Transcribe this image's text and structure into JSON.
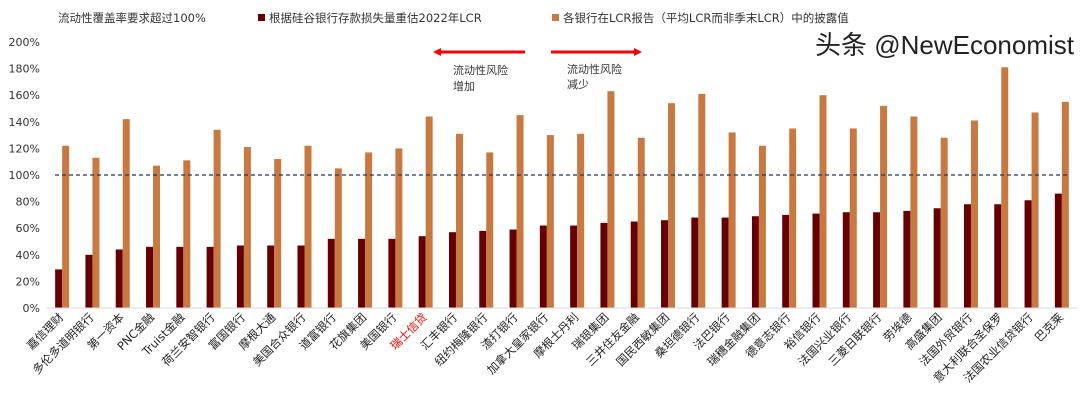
{
  "chart_data": {
    "type": "bar",
    "title": "",
    "xlabel": "",
    "ylabel": "",
    "ylim": [
      0,
      200
    ],
    "y_tick_format": "percent",
    "y_ticks": [
      "0%",
      "20%",
      "40%",
      "60%",
      "80%",
      "100%",
      "120%",
      "140%",
      "160%",
      "180%",
      "200%"
    ],
    "grid": false,
    "legend_position": "top",
    "reference_line": {
      "value": 100,
      "style": "dashed",
      "color": "#1f3864"
    },
    "annotation_top": "流动性覆盖率要求超过100%",
    "arrows": [
      {
        "direction": "left",
        "label_line1": "流动性风险",
        "label_line2": "增加",
        "color": "#ff0000"
      },
      {
        "direction": "right",
        "label_line1": "流动性风险",
        "label_line2": "减少",
        "color": "#ff0000"
      }
    ],
    "highlight_category": "瑞士信贷",
    "highlight_color": "#ff0000",
    "categories": [
      "嘉信理财",
      "多伦多道明银行",
      "第一资本",
      "PNC金融",
      "Truist金融",
      "荷兰安智银行",
      "富国银行",
      "摩根大通",
      "美国合众银行",
      "道富银行",
      "花旗集团",
      "美国银行",
      "瑞士信贷",
      "汇丰银行",
      "纽约梅隆银行",
      "渣打银行",
      "加拿大皇家银行",
      "摩根士丹利",
      "瑞银集团",
      "三井住友金融",
      "国民西敏集团",
      "桑坦德银行",
      "法巴银行",
      "瑞穗金融集团",
      "德意志银行",
      "裕信银行",
      "法国兴业银行",
      "三菱日联银行",
      "劳埃德",
      "高盛集团",
      "法国外贸银行",
      "意大利联合圣保罗",
      "法国农业信贷银行",
      "巴克莱"
    ],
    "series": [
      {
        "name": "根据硅谷银行存款损失量重估2022年LCR",
        "color": "#660000",
        "values": [
          29,
          40,
          44,
          46,
          46,
          46,
          47,
          47,
          47,
          52,
          52,
          52,
          54,
          57,
          58,
          59,
          62,
          62,
          64,
          65,
          66,
          68,
          68,
          69,
          70,
          71,
          72,
          72,
          73,
          75,
          78,
          78,
          81,
          86
        ]
      },
      {
        "name": "各银行在LCR报告（平均LCR而非季末LCR）中的披露值",
        "color": "#c87941",
        "values": [
          122,
          113,
          142,
          107,
          111,
          134,
          121,
          112,
          122,
          105,
          117,
          120,
          144,
          131,
          117,
          145,
          130,
          131,
          163,
          128,
          154,
          161,
          132,
          122,
          135,
          160,
          135,
          152,
          144,
          128,
          141,
          181,
          147,
          155
        ]
      }
    ]
  },
  "watermark": "头条 @NewEconomist"
}
